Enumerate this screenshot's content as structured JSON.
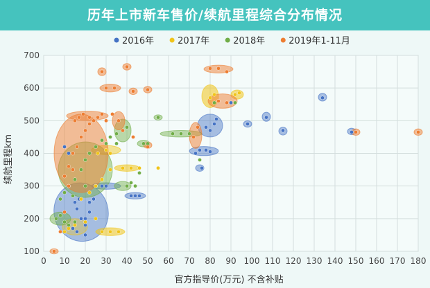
{
  "chart_data": {
    "type": "scatter",
    "title": "历年上市新车售价/续航里程综合分布情况",
    "xlabel": "官方指导价(万元) 不含补贴",
    "ylabel": "续航里程km",
    "xlim": [
      0,
      180
    ],
    "ylim": [
      100,
      700
    ],
    "xticks": [
      0,
      10,
      20,
      30,
      40,
      50,
      60,
      70,
      80,
      90,
      100,
      110,
      120,
      130,
      140,
      150,
      160,
      170,
      180
    ],
    "yticks": [
      100,
      200,
      300,
      400,
      500,
      600,
      700
    ],
    "grid": true,
    "legend_position": "top",
    "series": [
      {
        "name": "2016年",
        "color": "#4472c4",
        "points": [
          [
            10,
            420
          ],
          [
            12,
            400
          ],
          [
            15,
            250
          ],
          [
            16,
            230
          ],
          [
            17,
            260
          ],
          [
            18,
            200
          ],
          [
            20,
            180
          ],
          [
            20,
            150
          ],
          [
            22,
            250
          ],
          [
            24,
            260
          ],
          [
            25,
            300
          ],
          [
            28,
            300
          ],
          [
            30,
            300
          ],
          [
            16,
            160
          ],
          [
            14,
            170
          ],
          [
            20,
            200
          ],
          [
            22,
            220
          ],
          [
            42,
            270
          ],
          [
            44,
            270
          ],
          [
            46,
            270
          ],
          [
            75,
            410
          ],
          [
            78,
            410
          ],
          [
            80,
            405
          ],
          [
            73,
            400
          ],
          [
            76,
            355
          ],
          [
            78,
            480
          ],
          [
            80,
            470
          ],
          [
            82,
            490
          ],
          [
            83,
            505
          ],
          [
            90,
            555
          ],
          [
            98,
            490
          ],
          [
            107,
            510
          ],
          [
            115,
            470
          ],
          [
            134,
            570
          ],
          [
            148,
            465
          ],
          [
            92,
            580
          ]
        ],
        "ellipses": [
          [
            18,
            220,
            13,
            90,
            -15,
            0.45
          ],
          [
            30,
            300,
            7,
            10,
            0,
            0.45
          ],
          [
            44,
            270,
            5,
            10,
            0,
            0.45
          ],
          [
            77,
            407,
            7,
            14,
            0,
            0.45
          ],
          [
            80,
            485,
            6,
            35,
            0,
            0.45
          ],
          [
            98,
            490,
            2,
            10,
            0,
            0.45
          ],
          [
            107,
            512,
            2,
            14,
            0,
            0.45
          ],
          [
            115,
            468,
            2,
            12,
            0,
            0.45
          ],
          [
            134,
            572,
            2,
            12,
            0,
            0.45
          ],
          [
            148,
            467,
            2,
            10,
            0,
            0.45
          ],
          [
            75,
            355,
            2,
            10,
            0,
            0.45
          ]
        ]
      },
      {
        "name": "2017年",
        "color": "#f0c419",
        "points": [
          [
            10,
            160
          ],
          [
            12,
            170
          ],
          [
            15,
            180
          ],
          [
            20,
            190
          ],
          [
            25,
            200
          ],
          [
            28,
            160
          ],
          [
            32,
            160
          ],
          [
            36,
            160
          ],
          [
            18,
            260
          ],
          [
            22,
            280
          ],
          [
            25,
            300
          ],
          [
            28,
            320
          ],
          [
            32,
            350
          ],
          [
            38,
            355
          ],
          [
            42,
            355
          ],
          [
            46,
            355
          ],
          [
            55,
            355
          ],
          [
            26,
            400
          ],
          [
            30,
            410
          ],
          [
            32,
            400
          ],
          [
            80,
            570
          ],
          [
            82,
            580
          ],
          [
            84,
            560
          ],
          [
            92,
            580
          ],
          [
            94,
            585
          ]
        ],
        "ellipses": [
          [
            32,
            160,
            7,
            12,
            0,
            0.55
          ],
          [
            40,
            355,
            6,
            10,
            0,
            0.55
          ],
          [
            80,
            575,
            4,
            35,
            0,
            0.55
          ],
          [
            93,
            580,
            3,
            14,
            0,
            0.55
          ],
          [
            30,
            410,
            7,
            14,
            0,
            0.45
          ],
          [
            15,
            175,
            6,
            25,
            0,
            0.35
          ]
        ]
      },
      {
        "name": "2018年",
        "color": "#70ad47",
        "points": [
          [
            8,
            260
          ],
          [
            10,
            280
          ],
          [
            12,
            300
          ],
          [
            15,
            320
          ],
          [
            18,
            350
          ],
          [
            20,
            380
          ],
          [
            22,
            400
          ],
          [
            25,
            420
          ],
          [
            28,
            440
          ],
          [
            30,
            430
          ],
          [
            32,
            450
          ],
          [
            35,
            460
          ],
          [
            6,
            200
          ],
          [
            8,
            210
          ],
          [
            10,
            190
          ],
          [
            12,
            180
          ],
          [
            15,
            190
          ],
          [
            40,
            300
          ],
          [
            42,
            310
          ],
          [
            44,
            300
          ],
          [
            46,
            340
          ],
          [
            35,
            430
          ],
          [
            40,
            480
          ],
          [
            48,
            430
          ],
          [
            50,
            430
          ],
          [
            55,
            510
          ],
          [
            62,
            460
          ],
          [
            66,
            460
          ],
          [
            70,
            460
          ],
          [
            75,
            380
          ],
          [
            82,
            555
          ],
          [
            92,
            555
          ],
          [
            20,
            300
          ],
          [
            14,
            270
          ]
        ],
        "ellipses": [
          [
            20,
            350,
            13,
            85,
            10,
            0.45
          ],
          [
            38,
            300,
            4,
            14,
            0,
            0.45
          ],
          [
            48,
            430,
            3,
            10,
            0,
            0.45
          ],
          [
            66,
            460,
            10,
            10,
            0,
            0.45
          ],
          [
            55,
            510,
            2,
            8,
            0,
            0.45
          ],
          [
            8,
            200,
            5,
            20,
            0,
            0.45
          ],
          [
            38,
            470,
            4,
            35,
            0,
            0.45
          ]
        ]
      },
      {
        "name": "2019年1-11月",
        "color": "#ed7d31",
        "points": [
          [
            5,
            100
          ],
          [
            8,
            160
          ],
          [
            10,
            220
          ],
          [
            10,
            330
          ],
          [
            12,
            360
          ],
          [
            14,
            400
          ],
          [
            16,
            420
          ],
          [
            18,
            450
          ],
          [
            20,
            470
          ],
          [
            22,
            490
          ],
          [
            24,
            500
          ],
          [
            15,
            500
          ],
          [
            17,
            510
          ],
          [
            19,
            520
          ],
          [
            22,
            510
          ],
          [
            26,
            510
          ],
          [
            28,
            520
          ],
          [
            30,
            500
          ],
          [
            33,
            520
          ],
          [
            36,
            500
          ],
          [
            38,
            470
          ],
          [
            28,
            650
          ],
          [
            30,
            600
          ],
          [
            34,
            600
          ],
          [
            40,
            665
          ],
          [
            43,
            590
          ],
          [
            50,
            595
          ],
          [
            43,
            450
          ],
          [
            50,
            420
          ],
          [
            72,
            450
          ],
          [
            74,
            480
          ],
          [
            80,
            660
          ],
          [
            84,
            660
          ],
          [
            88,
            650
          ],
          [
            84,
            560
          ],
          [
            88,
            555
          ],
          [
            150,
            465
          ],
          [
            180,
            465
          ],
          [
            12,
            300
          ],
          [
            14,
            350
          ]
        ],
        "ellipses": [
          [
            18,
            400,
            13,
            120,
            0,
            0.5
          ],
          [
            21,
            515,
            10,
            14,
            0,
            0.5
          ],
          [
            36,
            500,
            3,
            28,
            0,
            0.5
          ],
          [
            5,
            100,
            2,
            8,
            0,
            0.5
          ],
          [
            28,
            650,
            2,
            12,
            0,
            0.5
          ],
          [
            32,
            600,
            5,
            12,
            0,
            0.5
          ],
          [
            40,
            665,
            2,
            10,
            0,
            0.5
          ],
          [
            43,
            590,
            2,
            10,
            0,
            0.5
          ],
          [
            50,
            595,
            2,
            10,
            0,
            0.5
          ],
          [
            50,
            425,
            2,
            10,
            0,
            0.5
          ],
          [
            73,
            455,
            3,
            40,
            0,
            0.5
          ],
          [
            84,
            658,
            7,
            12,
            0,
            0.5
          ],
          [
            86,
            560,
            7,
            22,
            0,
            0.5
          ],
          [
            150,
            465,
            2,
            10,
            0,
            0.5
          ],
          [
            180,
            465,
            2,
            10,
            0,
            0.5
          ]
        ]
      }
    ]
  }
}
